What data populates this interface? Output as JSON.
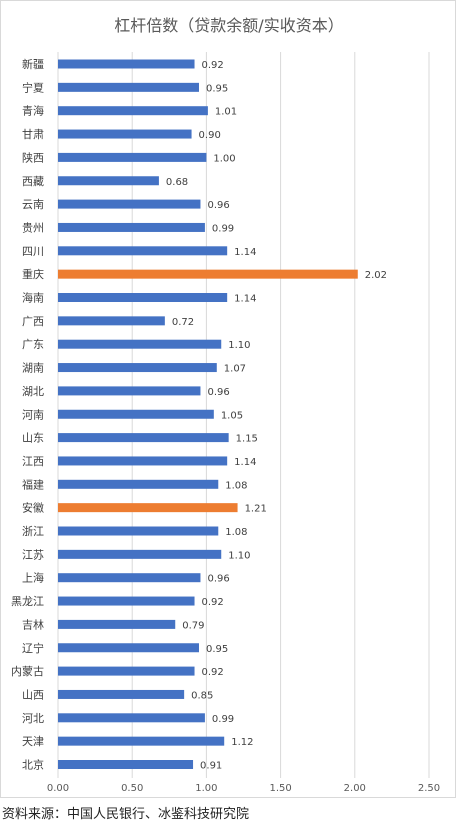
{
  "chart_data": {
    "type": "bar",
    "orientation": "horizontal",
    "title": "杠杆倍数（贷款余额/实收资本）",
    "xlabel": "",
    "ylabel": "",
    "xlim": [
      0,
      2.5
    ],
    "x_ticks": [
      "0.00",
      "0.50",
      "1.00",
      "1.50",
      "2.00",
      "2.50"
    ],
    "grid": true,
    "legend": "none",
    "colors": {
      "default": "#4472c4",
      "highlight": "#ed7d31",
      "grid": "#d9d9d9"
    },
    "categories": [
      "新疆",
      "宁夏",
      "青海",
      "甘肃",
      "陕西",
      "西藏",
      "云南",
      "贵州",
      "四川",
      "重庆",
      "海南",
      "广西",
      "广东",
      "湖南",
      "湖北",
      "河南",
      "山东",
      "江西",
      "福建",
      "安徽",
      "浙江",
      "江苏",
      "上海",
      "黑龙江",
      "吉林",
      "辽宁",
      "内蒙古",
      "山西",
      "河北",
      "天津",
      "北京"
    ],
    "values": [
      0.92,
      0.95,
      1.01,
      0.9,
      1.0,
      0.68,
      0.96,
      0.99,
      1.14,
      2.02,
      1.14,
      0.72,
      1.1,
      1.07,
      0.96,
      1.05,
      1.15,
      1.14,
      1.08,
      1.21,
      1.08,
      1.1,
      0.96,
      0.92,
      0.79,
      0.95,
      0.92,
      0.85,
      0.99,
      1.12,
      0.91
    ],
    "value_labels": [
      "0.92",
      "0.95",
      "1.01",
      "0.90",
      "1.00",
      "0.68",
      "0.96",
      "0.99",
      "1.14",
      "2.02",
      "1.14",
      "0.72",
      "1.10",
      "1.07",
      "0.96",
      "1.05",
      "1.15",
      "1.14",
      "1.08",
      "1.21",
      "1.08",
      "1.10",
      "0.96",
      "0.92",
      "0.79",
      "0.95",
      "0.92",
      "0.85",
      "0.99",
      "1.12",
      "0.91"
    ],
    "highlighted_categories": [
      "重庆",
      "安徽"
    ]
  },
  "source": "资料来源：中国人民银行、冰鉴科技研究院"
}
